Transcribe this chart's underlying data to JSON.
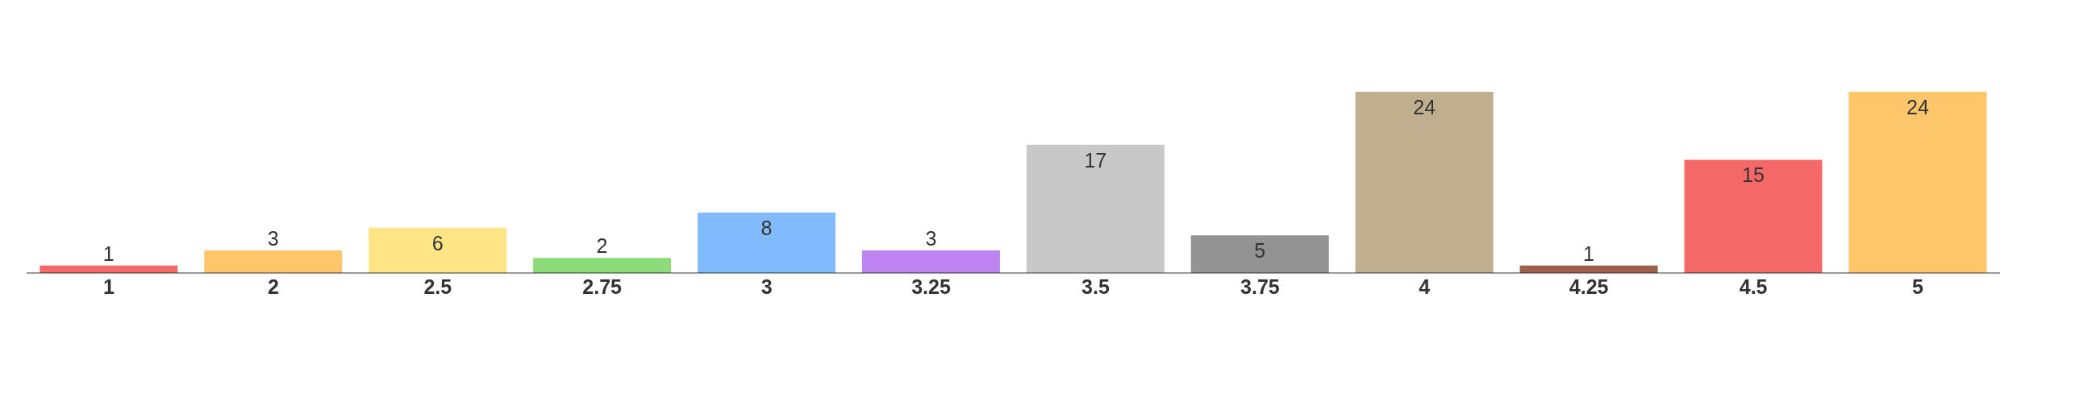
{
  "chart_data": {
    "type": "bar",
    "categories": [
      "1",
      "2",
      "2.5",
      "2.75",
      "3",
      "3.25",
      "3.5",
      "3.75",
      "4",
      "4.25",
      "4.5",
      "5"
    ],
    "values": [
      1,
      3,
      6,
      2,
      8,
      3,
      17,
      5,
      24,
      1,
      15,
      24
    ],
    "colors": [
      "#f46868",
      "#fec66a",
      "#fee485",
      "#8ddc7a",
      "#82bbfd",
      "#bf82f1",
      "#c8c8c8",
      "#939393",
      "#bfaf8f",
      "#a05f48",
      "#f46868",
      "#fec66a"
    ],
    "data_labels": true
  }
}
